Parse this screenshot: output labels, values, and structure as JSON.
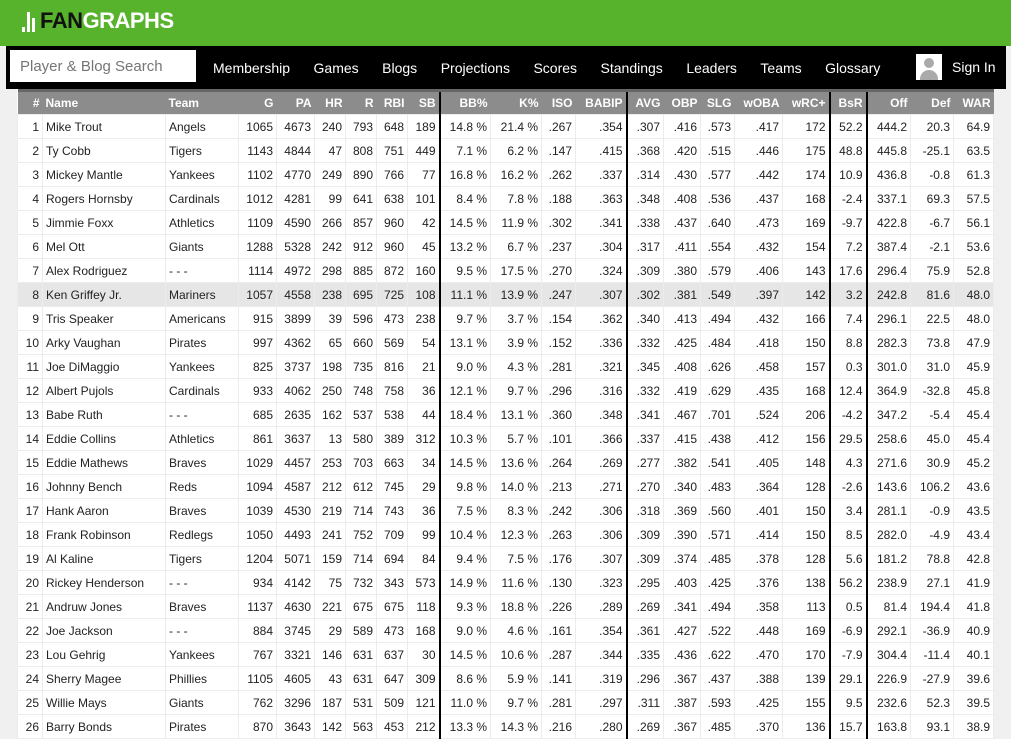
{
  "brand": {
    "logo_text_dark": "FAN",
    "logo_text_light": "GRAPHS",
    "color": "#57b22c"
  },
  "nav": {
    "search_placeholder": "Player & Blog Search",
    "items": [
      "Membership",
      "Games",
      "Blogs",
      "Projections",
      "Scores",
      "Standings",
      "Leaders",
      "Teams",
      "Glossary"
    ],
    "sign_in": "Sign In"
  },
  "table": {
    "columns": [
      "#",
      "Name",
      "Team",
      "G",
      "PA",
      "HR",
      "R",
      "RBI",
      "SB",
      "BB%",
      "K%",
      "ISO",
      "BABIP",
      "AVG",
      "OBP",
      "SLG",
      "wOBA",
      "wRC+",
      "BsR",
      "Off",
      "Def",
      "WAR"
    ],
    "highlighted_row": 8,
    "rows": [
      [
        "1",
        "Mike Trout",
        "Angels",
        "1065",
        "4673",
        "240",
        "793",
        "648",
        "189",
        "14.8 %",
        "21.4 %",
        ".267",
        ".354",
        ".307",
        ".416",
        ".573",
        ".417",
        "172",
        "52.2",
        "444.2",
        "20.3",
        "64.9"
      ],
      [
        "2",
        "Ty Cobb",
        "Tigers",
        "1143",
        "4844",
        "47",
        "808",
        "751",
        "449",
        "7.1 %",
        "6.2 %",
        ".147",
        ".415",
        ".368",
        ".420",
        ".515",
        ".446",
        "175",
        "48.8",
        "445.8",
        "-25.1",
        "63.5"
      ],
      [
        "3",
        "Mickey Mantle",
        "Yankees",
        "1102",
        "4770",
        "249",
        "890",
        "766",
        "77",
        "16.8 %",
        "16.2 %",
        ".262",
        ".337",
        ".314",
        ".430",
        ".577",
        ".442",
        "174",
        "10.9",
        "436.8",
        "-0.8",
        "61.3"
      ],
      [
        "4",
        "Rogers Hornsby",
        "Cardinals",
        "1012",
        "4281",
        "99",
        "641",
        "638",
        "101",
        "8.4 %",
        "7.8 %",
        ".188",
        ".363",
        ".348",
        ".408",
        ".536",
        ".437",
        "168",
        "-2.4",
        "337.1",
        "69.3",
        "57.5"
      ],
      [
        "5",
        "Jimmie Foxx",
        "Athletics",
        "1109",
        "4590",
        "266",
        "857",
        "960",
        "42",
        "14.5 %",
        "11.9 %",
        ".302",
        ".341",
        ".338",
        ".437",
        ".640",
        ".473",
        "169",
        "-9.7",
        "422.8",
        "-6.7",
        "56.1"
      ],
      [
        "6",
        "Mel Ott",
        "Giants",
        "1288",
        "5328",
        "242",
        "912",
        "960",
        "45",
        "13.2 %",
        "6.7 %",
        ".237",
        ".304",
        ".317",
        ".411",
        ".554",
        ".432",
        "154",
        "7.2",
        "387.4",
        "-2.1",
        "53.6"
      ],
      [
        "7",
        "Alex Rodriguez",
        "- - -",
        "1114",
        "4972",
        "298",
        "885",
        "872",
        "160",
        "9.5 %",
        "17.5 %",
        ".270",
        ".324",
        ".309",
        ".380",
        ".579",
        ".406",
        "143",
        "17.6",
        "296.4",
        "75.9",
        "52.8"
      ],
      [
        "8",
        "Ken Griffey Jr.",
        "Mariners",
        "1057",
        "4558",
        "238",
        "695",
        "725",
        "108",
        "11.1 %",
        "13.9 %",
        ".247",
        ".307",
        ".302",
        ".381",
        ".549",
        ".397",
        "142",
        "3.2",
        "242.8",
        "81.6",
        "48.0"
      ],
      [
        "9",
        "Tris Speaker",
        "Americans",
        "915",
        "3899",
        "39",
        "596",
        "473",
        "238",
        "9.7 %",
        "3.7 %",
        ".154",
        ".362",
        ".340",
        ".413",
        ".494",
        ".432",
        "166",
        "7.4",
        "296.1",
        "22.5",
        "48.0"
      ],
      [
        "10",
        "Arky Vaughan",
        "Pirates",
        "997",
        "4362",
        "65",
        "660",
        "569",
        "54",
        "13.1 %",
        "3.9 %",
        ".152",
        ".336",
        ".332",
        ".425",
        ".484",
        ".418",
        "150",
        "8.8",
        "282.3",
        "73.8",
        "47.9"
      ],
      [
        "11",
        "Joe DiMaggio",
        "Yankees",
        "825",
        "3737",
        "198",
        "735",
        "816",
        "21",
        "9.0 %",
        "4.3 %",
        ".281",
        ".321",
        ".345",
        ".408",
        ".626",
        ".458",
        "157",
        "0.3",
        "301.0",
        "31.0",
        "45.9"
      ],
      [
        "12",
        "Albert Pujols",
        "Cardinals",
        "933",
        "4062",
        "250",
        "748",
        "758",
        "36",
        "12.1 %",
        "9.7 %",
        ".296",
        ".316",
        ".332",
        ".419",
        ".629",
        ".435",
        "168",
        "12.4",
        "364.9",
        "-32.8",
        "45.8"
      ],
      [
        "13",
        "Babe Ruth",
        "- - -",
        "685",
        "2635",
        "162",
        "537",
        "538",
        "44",
        "18.4 %",
        "13.1 %",
        ".360",
        ".348",
        ".341",
        ".467",
        ".701",
        ".524",
        "206",
        "-4.2",
        "347.2",
        "-5.4",
        "45.4"
      ],
      [
        "14",
        "Eddie Collins",
        "Athletics",
        "861",
        "3637",
        "13",
        "580",
        "389",
        "312",
        "10.3 %",
        "5.7 %",
        ".101",
        ".366",
        ".337",
        ".415",
        ".438",
        ".412",
        "156",
        "29.5",
        "258.6",
        "45.0",
        "45.4"
      ],
      [
        "15",
        "Eddie Mathews",
        "Braves",
        "1029",
        "4457",
        "253",
        "703",
        "663",
        "34",
        "14.5 %",
        "13.6 %",
        ".264",
        ".269",
        ".277",
        ".382",
        ".541",
        ".405",
        "148",
        "4.3",
        "271.6",
        "30.9",
        "45.2"
      ],
      [
        "16",
        "Johnny Bench",
        "Reds",
        "1094",
        "4587",
        "212",
        "612",
        "745",
        "29",
        "9.8 %",
        "14.0 %",
        ".213",
        ".271",
        ".270",
        ".340",
        ".483",
        ".364",
        "128",
        "-2.6",
        "143.6",
        "106.2",
        "43.6"
      ],
      [
        "17",
        "Hank Aaron",
        "Braves",
        "1039",
        "4530",
        "219",
        "714",
        "743",
        "36",
        "7.5 %",
        "8.3 %",
        ".242",
        ".306",
        ".318",
        ".369",
        ".560",
        ".401",
        "150",
        "3.4",
        "281.1",
        "-0.9",
        "43.5"
      ],
      [
        "18",
        "Frank Robinson",
        "Redlegs",
        "1050",
        "4493",
        "241",
        "752",
        "709",
        "99",
        "10.4 %",
        "12.3 %",
        ".263",
        ".306",
        ".309",
        ".390",
        ".571",
        ".414",
        "150",
        "8.5",
        "282.0",
        "-4.9",
        "43.4"
      ],
      [
        "19",
        "Al Kaline",
        "Tigers",
        "1204",
        "5071",
        "159",
        "714",
        "694",
        "84",
        "9.4 %",
        "7.5 %",
        ".176",
        ".307",
        ".309",
        ".374",
        ".485",
        ".378",
        "128",
        "5.6",
        "181.2",
        "78.8",
        "42.8"
      ],
      [
        "20",
        "Rickey Henderson",
        "- - -",
        "934",
        "4142",
        "75",
        "732",
        "343",
        "573",
        "14.9 %",
        "11.6 %",
        ".130",
        ".323",
        ".295",
        ".403",
        ".425",
        ".376",
        "138",
        "56.2",
        "238.9",
        "27.1",
        "41.9"
      ],
      [
        "21",
        "Andruw Jones",
        "Braves",
        "1137",
        "4630",
        "221",
        "675",
        "675",
        "118",
        "9.3 %",
        "18.8 %",
        ".226",
        ".289",
        ".269",
        ".341",
        ".494",
        ".358",
        "113",
        "0.5",
        "81.4",
        "194.4",
        "41.8"
      ],
      [
        "22",
        "Joe Jackson",
        "- - -",
        "884",
        "3745",
        "29",
        "589",
        "473",
        "168",
        "9.0 %",
        "4.6 %",
        ".161",
        ".354",
        ".361",
        ".427",
        ".522",
        ".448",
        "169",
        "-6.9",
        "292.1",
        "-36.9",
        "40.9"
      ],
      [
        "23",
        "Lou Gehrig",
        "Yankees",
        "767",
        "3321",
        "146",
        "631",
        "637",
        "30",
        "14.5 %",
        "10.6 %",
        ".287",
        ".344",
        ".335",
        ".436",
        ".622",
        ".470",
        "170",
        "-7.9",
        "304.4",
        "-11.4",
        "40.1"
      ],
      [
        "24",
        "Sherry Magee",
        "Phillies",
        "1105",
        "4605",
        "43",
        "631",
        "647",
        "309",
        "8.6 %",
        "5.9 %",
        ".141",
        ".319",
        ".296",
        ".367",
        ".437",
        ".388",
        "139",
        "29.1",
        "226.9",
        "-27.9",
        "39.6"
      ],
      [
        "25",
        "Willie Mays",
        "Giants",
        "762",
        "3296",
        "187",
        "531",
        "509",
        "121",
        "11.0 %",
        "9.7 %",
        ".281",
        ".297",
        ".311",
        ".387",
        ".593",
        ".425",
        "155",
        "9.5",
        "232.6",
        "52.3",
        "39.5"
      ],
      [
        "26",
        "Barry Bonds",
        "Pirates",
        "870",
        "3643",
        "142",
        "563",
        "453",
        "212",
        "13.3 %",
        "14.3 %",
        ".216",
        ".280",
        ".269",
        ".367",
        ".485",
        ".370",
        "136",
        "15.7",
        "163.8",
        "93.1",
        "38.9"
      ]
    ]
  }
}
